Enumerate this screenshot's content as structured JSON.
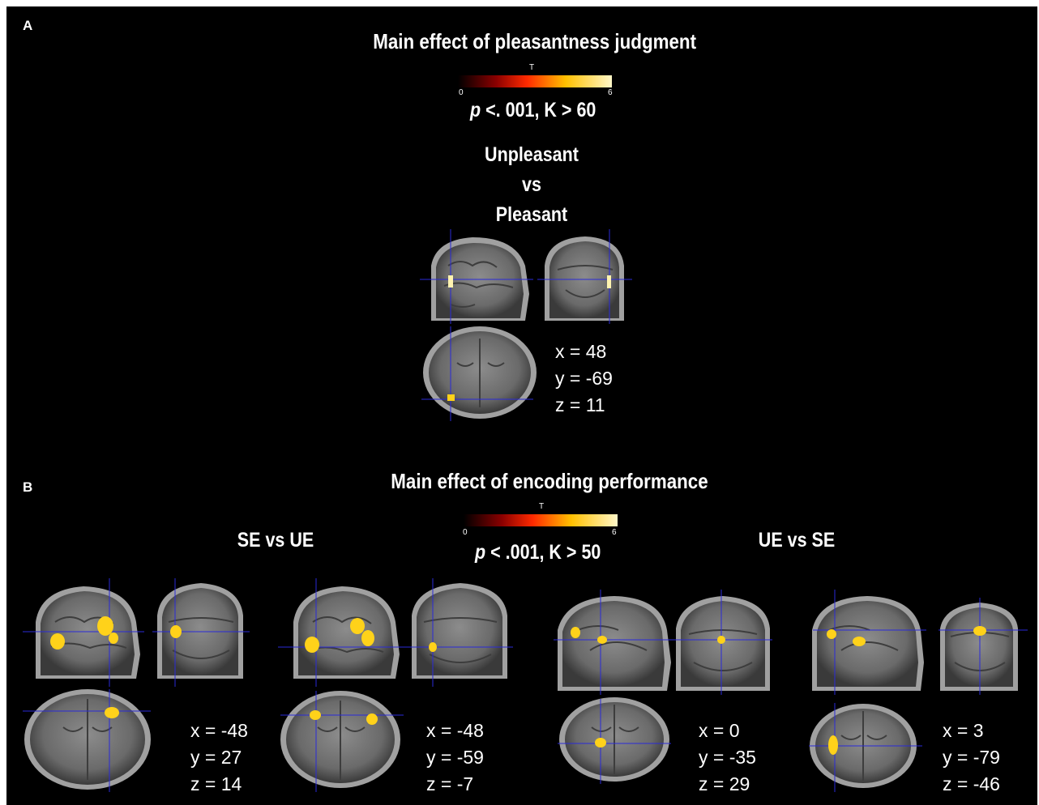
{
  "panel_a": {
    "letter": "A",
    "title": "Main effect of pleasantness judgment",
    "colorbar": {
      "label": "T",
      "min": "0",
      "max": "6"
    },
    "threshold_p": "p",
    "threshold_rest": " <. 001, K > 60",
    "contrast": [
      "Unpleasant",
      "vs",
      "Pleasant"
    ],
    "coords": {
      "x": "x = 48",
      "y": "y = -69",
      "z": "z = 11"
    }
  },
  "panel_b": {
    "letter": "B",
    "title": "Main effect of encoding performance",
    "colorbar": {
      "label": "T",
      "min": "0",
      "max": "6"
    },
    "threshold_p": "p",
    "threshold_rest": " < .001, K > 50",
    "left_contrast": "SE vs UE",
    "right_contrast": "UE vs SE",
    "sets": [
      {
        "x": "x = -48",
        "y": "y = 27",
        "z": "z = 14"
      },
      {
        "x": "x = -48",
        "y": "y = -59",
        "z": "z = -7"
      },
      {
        "x": "x = 0",
        "y": "y = -35",
        "z": "z = 29"
      },
      {
        "x": "x = 3",
        "y": "y = -79",
        "z": "z = -46"
      }
    ]
  },
  "colors": {
    "background": "#000000",
    "crosshair": "#2a2ad8",
    "activation": "#ffd21a",
    "colormap": [
      "#000000",
      "#8b0000",
      "#ff2a00",
      "#ffc000",
      "#fff7c8"
    ]
  }
}
